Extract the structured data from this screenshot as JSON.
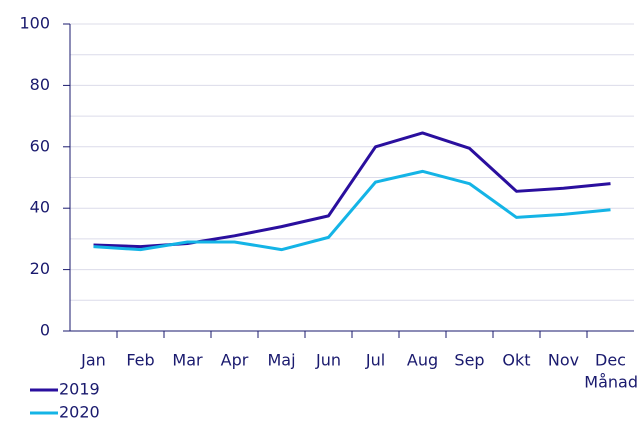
{
  "chart_data": {
    "type": "line",
    "categories": [
      "Jan",
      "Feb",
      "Mar",
      "Apr",
      "Maj",
      "Jun",
      "Jul",
      "Aug",
      "Sep",
      "Okt",
      "Nov",
      "Dec"
    ],
    "series": [
      {
        "name": "2019",
        "color": "#2a0f9e",
        "values": [
          28,
          27.5,
          28.5,
          31,
          34,
          37.5,
          60,
          64.5,
          59.5,
          45.5,
          46.5,
          48
        ]
      },
      {
        "name": "2020",
        "color": "#14b4e6",
        "values": [
          27.5,
          26.5,
          29,
          29,
          26.5,
          30.5,
          48.5,
          52,
          48,
          37,
          38,
          39.5
        ]
      }
    ],
    "xlabel": "Månad",
    "ylim": [
      0,
      100
    ],
    "yticks": [
      0,
      20,
      40,
      60,
      80,
      100
    ],
    "yticks_minor": [
      10,
      30,
      50,
      70,
      90
    ],
    "grid": true,
    "legend": "bottom-left"
  }
}
